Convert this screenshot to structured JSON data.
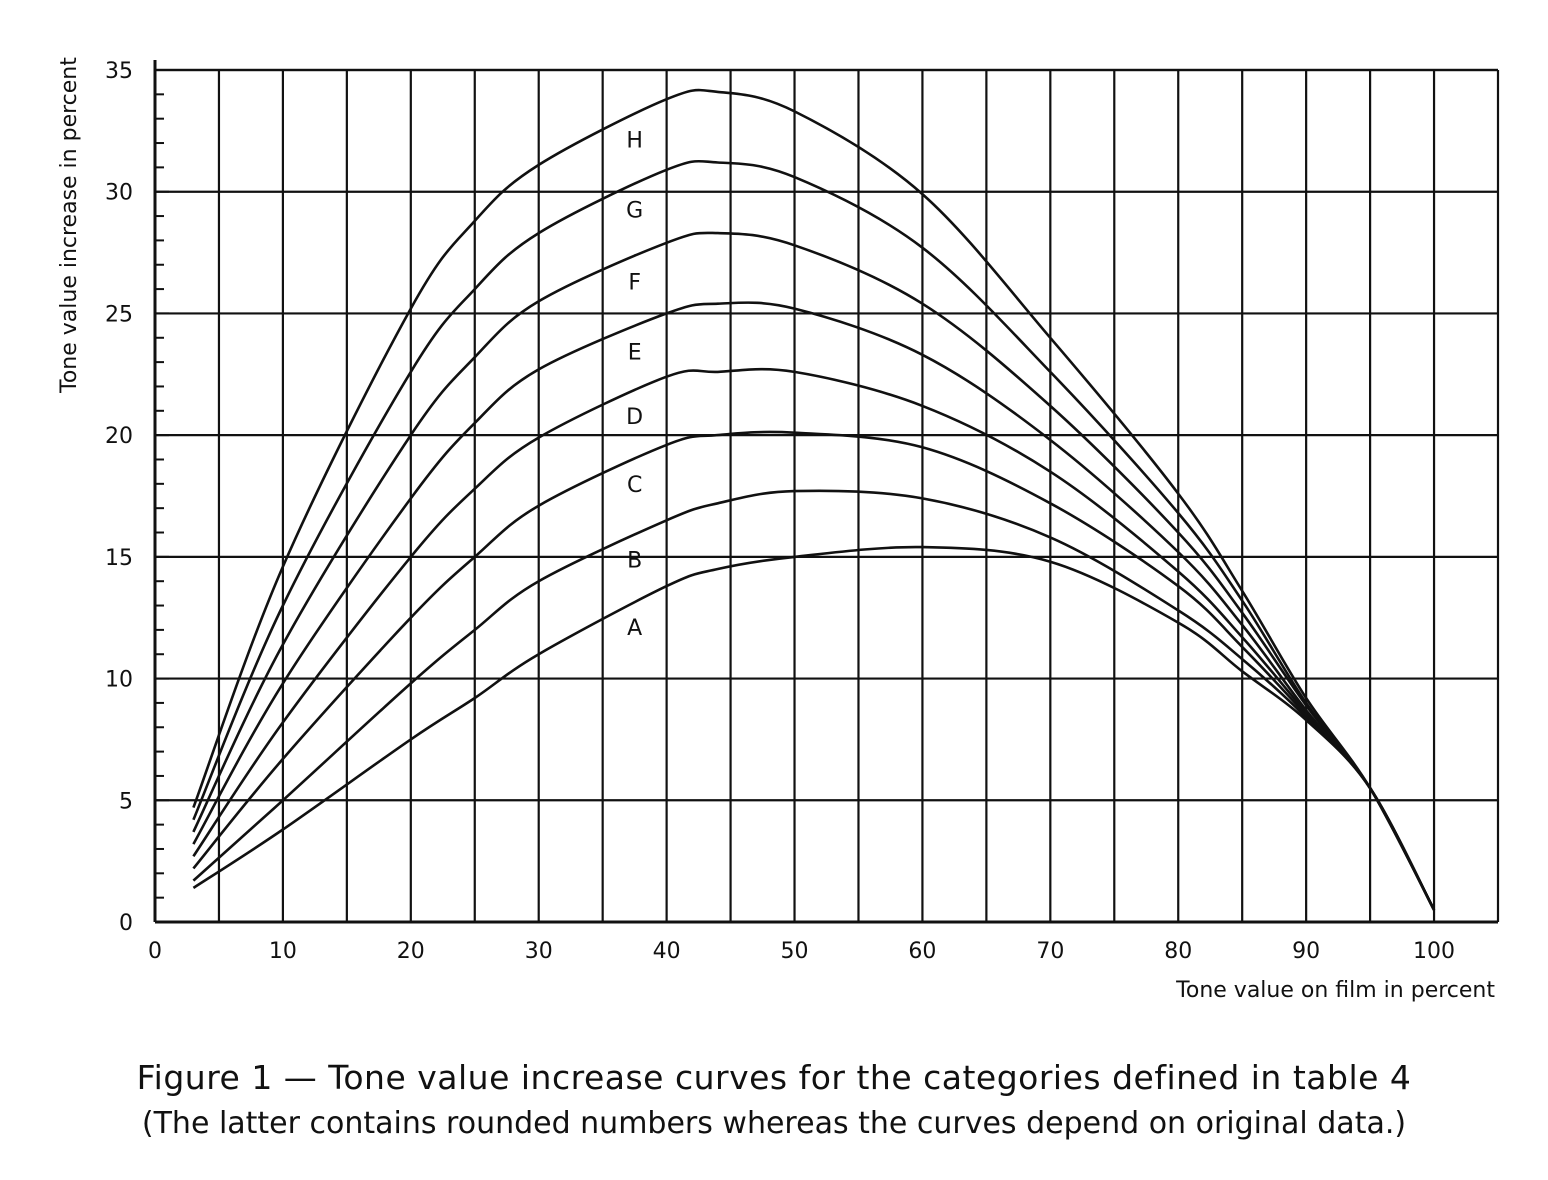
{
  "chart_data": {
    "type": "line",
    "xlabel": "Tone value on film in percent",
    "ylabel": "Tone value increase in percent",
    "xlim": [
      0,
      105
    ],
    "ylim": [
      0,
      35
    ],
    "x_ticks": [
      "0",
      "10",
      "20",
      "30",
      "40",
      "50",
      "60",
      "70",
      "80",
      "90",
      "100"
    ],
    "y_ticks": [
      "0",
      "5",
      "10",
      "15",
      "20",
      "25",
      "30",
      "35"
    ],
    "grid": true,
    "legend": "none (curves labeled inline)",
    "x": [
      3,
      10,
      20,
      25,
      30,
      40,
      44,
      50,
      60,
      70,
      80,
      85,
      90,
      95,
      100
    ],
    "series": [
      {
        "name": "A",
        "values": [
          1.4,
          3.8,
          7.5,
          9.2,
          11.0,
          13.8,
          14.5,
          15.0,
          15.4,
          14.8,
          12.3,
          10.3,
          8.3,
          5.5,
          0.5
        ]
      },
      {
        "name": "B",
        "values": [
          1.7,
          5.0,
          9.8,
          12.0,
          14.0,
          16.5,
          17.2,
          17.7,
          17.4,
          15.8,
          12.8,
          10.8,
          8.4,
          5.5,
          0.5
        ]
      },
      {
        "name": "C",
        "values": [
          2.2,
          6.7,
          12.5,
          15.0,
          17.1,
          19.6,
          20.0,
          20.1,
          19.5,
          17.2,
          13.8,
          11.3,
          8.5,
          5.5,
          0.5
        ]
      },
      {
        "name": "D",
        "values": [
          2.7,
          8.2,
          15.0,
          17.8,
          19.9,
          22.4,
          22.6,
          22.6,
          21.2,
          18.5,
          14.4,
          11.7,
          8.6,
          5.5,
          0.5
        ]
      },
      {
        "name": "E",
        "values": [
          3.2,
          9.8,
          17.4,
          20.5,
          22.7,
          25.0,
          25.4,
          25.2,
          23.3,
          19.8,
          15.2,
          12.2,
          8.7,
          5.5,
          0.5
        ]
      },
      {
        "name": "F",
        "values": [
          3.7,
          11.4,
          20.0,
          23.2,
          25.5,
          27.9,
          28.3,
          27.8,
          25.4,
          21.2,
          16.0,
          12.7,
          8.9,
          5.5,
          0.5
        ]
      },
      {
        "name": "G",
        "values": [
          4.2,
          13.0,
          22.6,
          26.0,
          28.3,
          30.9,
          31.2,
          30.6,
          27.7,
          22.6,
          16.8,
          13.2,
          9.0,
          5.5,
          0.5
        ]
      },
      {
        "name": "H",
        "values": [
          4.7,
          14.6,
          25.2,
          28.8,
          31.1,
          33.8,
          34.1,
          33.3,
          29.9,
          24.0,
          17.6,
          13.6,
          9.2,
          5.5,
          0.5
        ]
      }
    ]
  },
  "caption": {
    "line1": "Figure 1 — Tone value increase curves for the categories defined in table 4",
    "line2": "(The latter contains rounded numbers whereas the curves depend on original data.)"
  },
  "colors": {
    "ink": "#111111",
    "background": "#ffffff"
  }
}
